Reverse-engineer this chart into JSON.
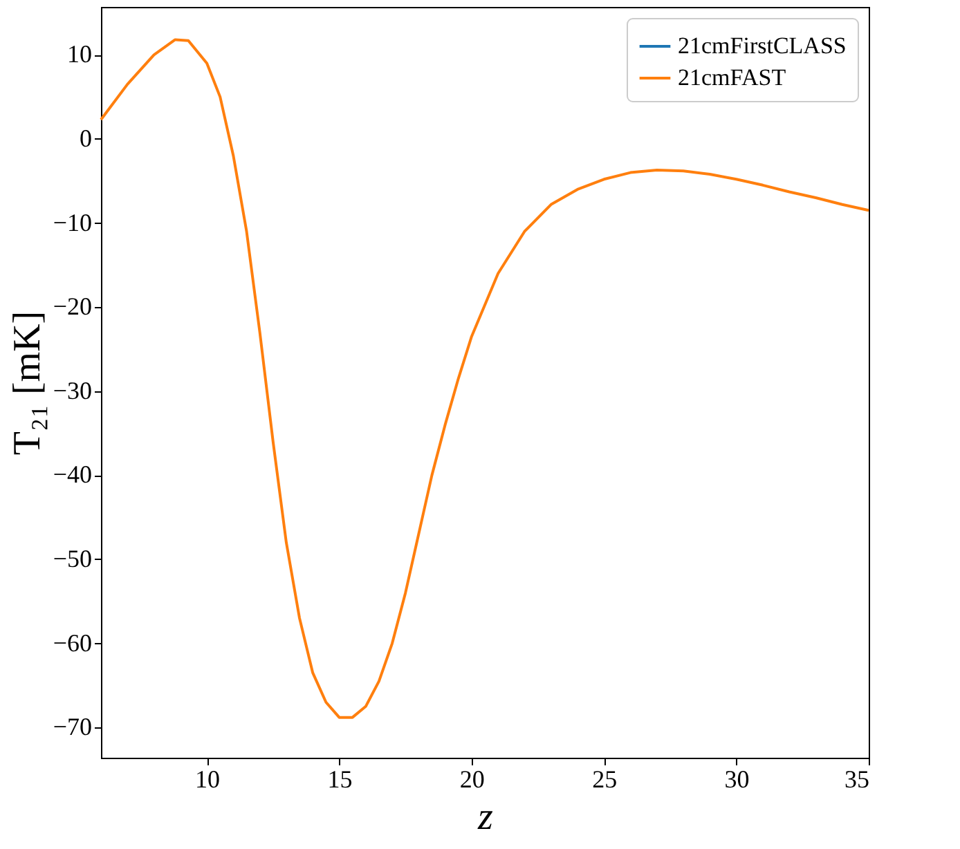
{
  "chart_data": {
    "type": "line",
    "xlabel": "z",
    "ylabel": "T₂₁ [mK]",
    "xlim": [
      6,
      35
    ],
    "ylim": [
      -73.6,
      15.7
    ],
    "xticks": [
      10,
      15,
      20,
      25,
      30,
      35
    ],
    "yticks": [
      -70,
      -60,
      -50,
      -40,
      -30,
      -20,
      -10,
      0,
      10
    ],
    "grid": false,
    "legend": "top right",
    "marker": "none",
    "line_style": "solid",
    "x": [
      6,
      7,
      8,
      8.8,
      9.3,
      10,
      10.5,
      11,
      11.5,
      12,
      12.5,
      13,
      13.5,
      14,
      14.5,
      15,
      15.5,
      16,
      16.5,
      17,
      17.5,
      18,
      18.5,
      19,
      19.5,
      20,
      21,
      22,
      23,
      24,
      25,
      26,
      27,
      28,
      29,
      30,
      31,
      32,
      33,
      34,
      35
    ],
    "series": [
      {
        "name": "21cmFirstCLASS",
        "color": "#1f77b4",
        "values": [
          null,
          null,
          null,
          null,
          null,
          null,
          null,
          null,
          null,
          null,
          null,
          null,
          null,
          null,
          null,
          null,
          null,
          null,
          null,
          null,
          null,
          null,
          null,
          null,
          null,
          null,
          null,
          null,
          null,
          null,
          null,
          null,
          null,
          null,
          null,
          null,
          null,
          null,
          null,
          null,
          null
        ]
      },
      {
        "name": "21cmFAST",
        "color": "#ff7f0e",
        "values": [
          2.3,
          6.5,
          10,
          11.8,
          11.7,
          9,
          5,
          -2,
          -11,
          -23,
          -36,
          -48,
          -57,
          -63.5,
          -67,
          -68.8,
          -68.8,
          -67.5,
          -64.5,
          -60,
          -54,
          -47,
          -40,
          -34,
          -28.5,
          -23.5,
          -16,
          -11,
          -7.8,
          -6,
          -4.8,
          -4,
          -3.7,
          -3.8,
          -4.2,
          -4.8,
          -5.5,
          -6.3,
          -7,
          -7.8,
          -8.5
        ]
      }
    ]
  }
}
